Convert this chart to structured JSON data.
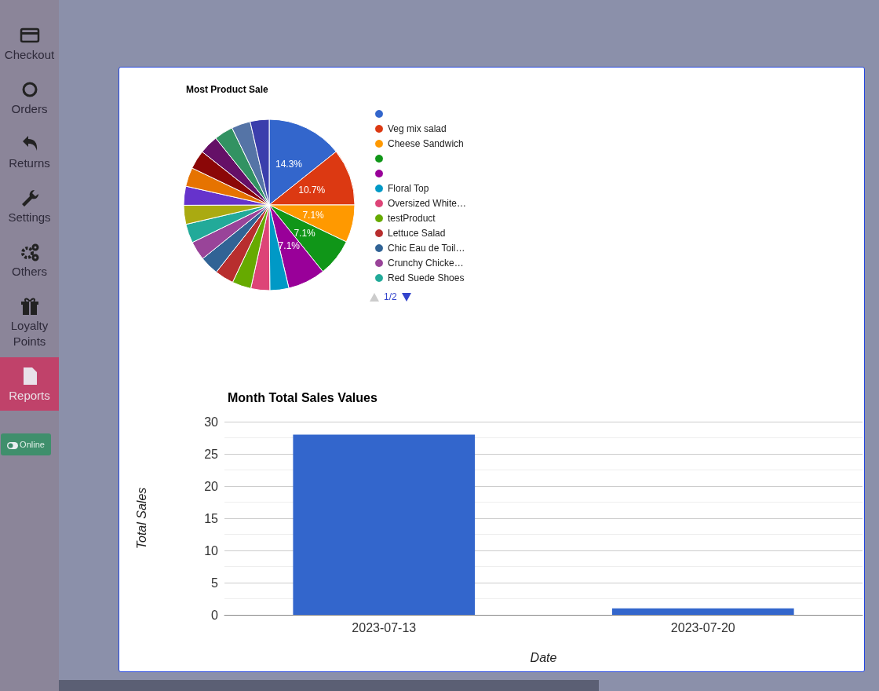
{
  "chart_data": [
    {
      "type": "pie",
      "title": "Most Product Sale",
      "categories": [
        null,
        "Veg mix salad",
        "Cheese Sandwich",
        null,
        null,
        "Floral Top",
        "Oversized White…",
        "testProduct",
        "Lettuce Salad",
        "Chic Eau de Toil…",
        "Crunchy Chicke…",
        "Red Suede Shoes",
        null,
        null,
        null,
        null,
        null,
        null,
        null,
        null
      ],
      "values": [
        14.3,
        10.7,
        7.1,
        7.1,
        7.1,
        3.58,
        3.58,
        3.58,
        3.58,
        3.58,
        3.58,
        3.58,
        3.58,
        3.58,
        3.58,
        3.58,
        3.58,
        3.58,
        3.58,
        3.58
      ],
      "value_labels": [
        "14.3%",
        "10.7%",
        "7.1%",
        "7.1%",
        "7.1%",
        null,
        null,
        null,
        null,
        null,
        null,
        null,
        null,
        null,
        null,
        null,
        null,
        null,
        null,
        null
      ],
      "colors": [
        "#3366cc",
        "#dc3912",
        "#ff9900",
        "#109618",
        "#990099",
        "#0099c6",
        "#dd4477",
        "#66aa00",
        "#b82e2e",
        "#316395",
        "#994499",
        "#22aa99",
        "#aaaa11",
        "#6633cc",
        "#e67300",
        "#8b0707",
        "#651067",
        "#329262",
        "#5574a6",
        "#3b3eac"
      ],
      "legend": "right",
      "annotations": [
        "1/2"
      ]
    },
    {
      "type": "bar",
      "title": "Month Total Sales Values",
      "xlabel": "Date",
      "ylabel": "Total Sales",
      "categories": [
        "2023-07-13",
        "2023-07-20"
      ],
      "values": [
        28,
        1
      ],
      "color": "#3366cc",
      "ylim": [
        0,
        30
      ],
      "yticks": [
        0,
        5,
        10,
        15,
        20,
        25,
        30
      ],
      "grid": "y",
      "legend": false
    },
    {
      "type": "other",
      "annotations": [
        "Checkout",
        "Orders",
        "Returns",
        "Settings",
        "Others",
        "Loyalty Points",
        "Reports",
        "Online"
      ]
    }
  ]
}
